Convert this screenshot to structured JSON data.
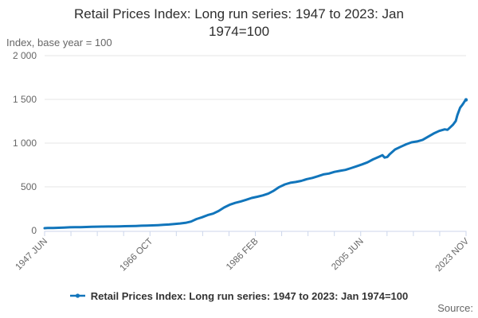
{
  "header": {
    "title_line1": "Retail Prices Index: Long run series: 1947 to 2023: Jan",
    "title_line2": "1974=100",
    "y_axis_caption": "Index, base year = 100"
  },
  "legend": {
    "label": "Retail Prices Index: Long run series: 1947 to 2023: Jan 1974=100"
  },
  "footer": {
    "source_label": "Source:"
  },
  "colors": {
    "series": "#1175bb",
    "grid": "#e6e6e6",
    "axis": "#ccd6eb",
    "muted_text": "#666666",
    "title_text": "#2e2e2e",
    "legend_text": "#333333"
  },
  "chart_data": {
    "type": "line",
    "title": "Retail Prices Index: Long run series: 1947 to 2023: Jan 1974=100",
    "ylabel": "Index, base year = 100",
    "xlabel": "",
    "grid": true,
    "legend_position": "bottom",
    "ylim": [
      0,
      2000
    ],
    "xlim": [
      1947.45,
      2023.87
    ],
    "yticks": [
      {
        "v": 0,
        "label": "0"
      },
      {
        "v": 500,
        "label": "500"
      },
      {
        "v": 1000,
        "label": "1 000"
      },
      {
        "v": 1500,
        "label": "1 500"
      },
      {
        "v": 2000,
        "label": "2 000"
      }
    ],
    "xtick_labels": [
      "1947 JUN",
      "1966 OCT",
      "1986 FEB",
      "2005 JUN",
      "2023 NOV"
    ],
    "tick_count": 17,
    "label_every": 4,
    "series": [
      {
        "name": "Retail Prices Index: Long run series: 1947 to 2023: Jan 1974=100",
        "color": "#1175bb",
        "points": [
          [
            1947.45,
            27.5
          ],
          [
            1948,
            29.3
          ],
          [
            1949,
            30.3
          ],
          [
            1950,
            31.4
          ],
          [
            1951,
            34.3
          ],
          [
            1952,
            37.3
          ],
          [
            1953,
            38.4
          ],
          [
            1954,
            39.1
          ],
          [
            1955,
            40.9
          ],
          [
            1956,
            42.9
          ],
          [
            1957,
            44.5
          ],
          [
            1958,
            45.8
          ],
          [
            1959,
            46.0
          ],
          [
            1960,
            46.5
          ],
          [
            1961,
            48.1
          ],
          [
            1962,
            50.1
          ],
          [
            1963,
            51.1
          ],
          [
            1964,
            52.8
          ],
          [
            1965,
            55.3
          ],
          [
            1966,
            57.5
          ],
          [
            1967,
            59.0
          ],
          [
            1968,
            61.8
          ],
          [
            1969,
            65.1
          ],
          [
            1970,
            69.2
          ],
          [
            1971,
            75.7
          ],
          [
            1972,
            81.1
          ],
          [
            1973,
            88.6
          ],
          [
            1974,
            103
          ],
          [
            1975,
            132
          ],
          [
            1976,
            152
          ],
          [
            1977,
            176
          ],
          [
            1978,
            194
          ],
          [
            1979,
            224
          ],
          [
            1980,
            264
          ],
          [
            1981,
            295
          ],
          [
            1982,
            316
          ],
          [
            1983,
            333
          ],
          [
            1984,
            352
          ],
          [
            1985,
            373
          ],
          [
            1986,
            386
          ],
          [
            1987,
            402
          ],
          [
            1988,
            422
          ],
          [
            1989,
            455
          ],
          [
            1990,
            497
          ],
          [
            1991,
            527
          ],
          [
            1992,
            546
          ],
          [
            1993,
            555
          ],
          [
            1994,
            568
          ],
          [
            1995,
            588
          ],
          [
            1996,
            602
          ],
          [
            1997,
            621
          ],
          [
            1998,
            642
          ],
          [
            1999,
            652
          ],
          [
            2000,
            671
          ],
          [
            2001,
            683
          ],
          [
            2002,
            694
          ],
          [
            2003,
            714
          ],
          [
            2004,
            735
          ],
          [
            2005,
            756
          ],
          [
            2006,
            780
          ],
          [
            2007,
            814
          ],
          [
            2008.2,
            846
          ],
          [
            2008.7,
            862
          ],
          [
            2009.1,
            835
          ],
          [
            2009.6,
            842
          ],
          [
            2010,
            872
          ],
          [
            2011,
            927
          ],
          [
            2012,
            957
          ],
          [
            2013,
            986
          ],
          [
            2014,
            1009
          ],
          [
            2015,
            1019
          ],
          [
            2016,
            1037
          ],
          [
            2017,
            1074
          ],
          [
            2018,
            1110
          ],
          [
            2019,
            1139
          ],
          [
            2020,
            1157
          ],
          [
            2020.5,
            1152
          ],
          [
            2021,
            1180
          ],
          [
            2021.5,
            1210
          ],
          [
            2022,
            1253
          ],
          [
            2022.3,
            1320
          ],
          [
            2022.8,
            1405
          ],
          [
            2023.1,
            1430
          ],
          [
            2023.4,
            1455
          ],
          [
            2023.6,
            1476
          ],
          [
            2023.75,
            1490
          ],
          [
            2023.87,
            1495
          ]
        ]
      }
    ]
  }
}
